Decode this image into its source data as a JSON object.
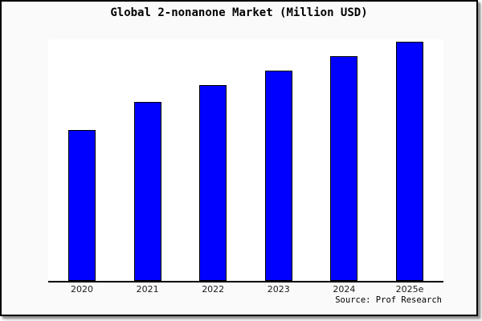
{
  "window": {
    "background": "#fafafa",
    "frame_border_color": "#000000",
    "plot_background": "#ffffff"
  },
  "title": "Global 2-nonanone Market (Million USD)",
  "source": "Source: Prof Research",
  "chart_data": {
    "type": "bar",
    "title": "Global 2-nonanone Market (Million USD)",
    "categories": [
      "2020",
      "2021",
      "2022",
      "2023",
      "2024",
      "2025e"
    ],
    "values": [
      63,
      75,
      82,
      88,
      94,
      100
    ],
    "values_note": "no y-axis ticks or data labels visible; values are relative bar heights normalized so 2025e = 100",
    "xlabel": "",
    "ylabel": "",
    "ylim": [
      0,
      101
    ],
    "grid": false,
    "legend": false,
    "y_axis_visible": false,
    "bar_color": "#0000ff",
    "bar_border_color": "#000000",
    "axis_line_color": "#000000",
    "annotations": [
      "Source: Prof Research"
    ]
  }
}
